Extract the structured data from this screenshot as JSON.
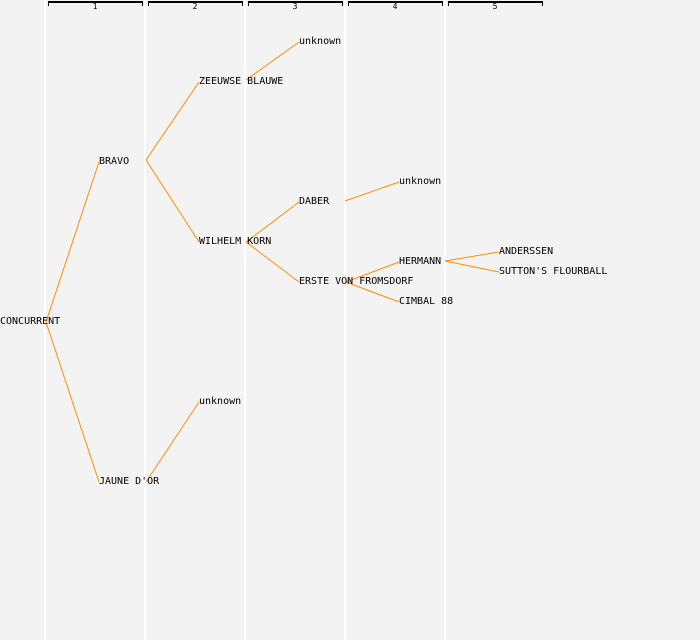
{
  "generations": [
    "1",
    "2",
    "3",
    "4",
    "5"
  ],
  "line_color": "#ff8c00",
  "nodes": {
    "root": "CONCURRENT",
    "father": "BRAVO",
    "mother": "JAUNE D'OR",
    "ff": "ZEEUWSE BLAUWE",
    "fm": "WILHELM KORN",
    "mf": "unknown",
    "fff": "unknown",
    "fmf": "DABER",
    "fmm": "ERSTE VON FROMSDORF",
    "fmff": "unknown",
    "fmmf": "HERMANN",
    "fmmm": "CIMBAL 88",
    "fmmff": "ANDERSSEN",
    "fmmfm": "SUTTON'S FLOURBALL"
  }
}
